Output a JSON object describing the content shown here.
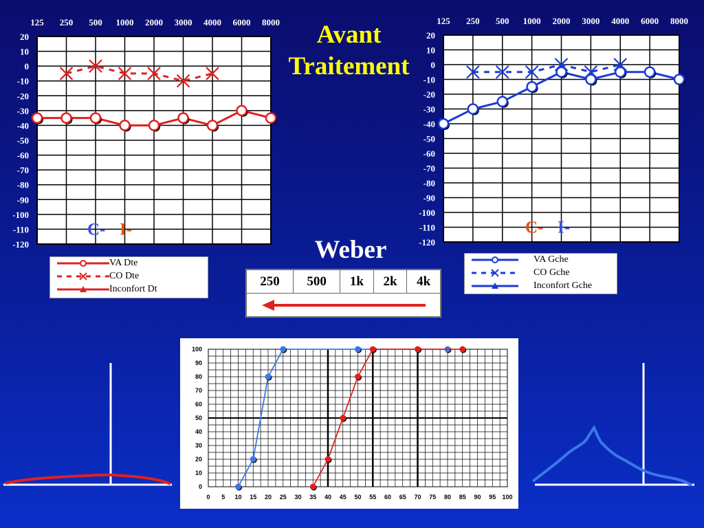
{
  "title_lines": [
    "Avant",
    "Traitement"
  ],
  "weber": {
    "title": "Weber",
    "freqs": [
      "250",
      "500",
      "1k",
      "2k",
      "4k"
    ],
    "arrow_direction": "left",
    "arrow_color": "#e02020"
  },
  "colors": {
    "right": "#e02020",
    "left": "#1a3ad8",
    "speech_left": "#3a78e6",
    "speech_right": "#e02020",
    "title": "#ffff00",
    "ci_C": "#3a4ee0",
    "ci_I": "#e85010"
  },
  "legend_right": [
    {
      "label": "VA Dte",
      "style": "solid-circle"
    },
    {
      "label": "CO Dte",
      "style": "dashed-x"
    },
    {
      "label": "Inconfort Dt",
      "style": "solid-triangle"
    }
  ],
  "legend_left": [
    {
      "label": "VA Gche",
      "style": "solid-circle"
    },
    {
      "label": "CO Gche",
      "style": "dashed-x"
    },
    {
      "label": "Inconfort Gche",
      "style": "solid-triangle"
    }
  ],
  "chart_data": [
    {
      "type": "line",
      "name": "audiogram-right",
      "x_categories": [
        "125",
        "250",
        "500",
        "1000",
        "2000",
        "3000",
        "4000",
        "6000",
        "8000"
      ],
      "yticks": [
        "20",
        "10",
        "0",
        "-10",
        "-20",
        "-30",
        "-40",
        "-50",
        "-60",
        "-70",
        "-80",
        "-90",
        "-100",
        "-110",
        "-120"
      ],
      "ylim": [
        -120,
        20
      ],
      "grid": true,
      "marks": [
        "C-",
        "I-"
      ],
      "series": [
        {
          "name": "VA Dte",
          "x_index": [
            0,
            1,
            2,
            3,
            4,
            5,
            6,
            7,
            8
          ],
          "values": [
            -35,
            -35,
            -35,
            -40,
            -40,
            -35,
            -40,
            -30,
            -35
          ],
          "style": "solid-circle"
        },
        {
          "name": "CO Dte",
          "x_index": [
            1,
            2,
            3,
            4,
            5,
            6
          ],
          "values": [
            -5,
            0,
            -5,
            -5,
            -10,
            -5
          ],
          "style": "dashed-x"
        }
      ]
    },
    {
      "type": "line",
      "name": "audiogram-left",
      "x_categories": [
        "125",
        "250",
        "500",
        "1000",
        "2000",
        "3000",
        "4000",
        "6000",
        "8000"
      ],
      "yticks": [
        "20",
        "10",
        "0",
        "-10",
        "-20",
        "-30",
        "-40",
        "-50",
        "-60",
        "-70",
        "-80",
        "-90",
        "-100",
        "-110",
        "-120"
      ],
      "ylim": [
        -120,
        20
      ],
      "grid": true,
      "marks": [
        "C-",
        "I-"
      ],
      "series": [
        {
          "name": "VA Gche",
          "x_index": [
            0,
            1,
            2,
            3,
            4,
            5,
            6,
            7,
            8
          ],
          "values": [
            -40,
            -30,
            -25,
            -15,
            -5,
            -10,
            -5,
            -5,
            -10
          ],
          "style": "solid-circle"
        },
        {
          "name": "CO Gche",
          "x_index": [
            1,
            2,
            3,
            4,
            5,
            6
          ],
          "values": [
            -5,
            -5,
            -5,
            0,
            -5,
            0
          ],
          "style": "dashed-x"
        }
      ]
    },
    {
      "type": "line",
      "name": "speech-audiometry",
      "xticks": [
        "0",
        "5",
        "10",
        "15",
        "20",
        "25",
        "30",
        "35",
        "40",
        "45",
        "50",
        "55",
        "60",
        "65",
        "70",
        "75",
        "80",
        "85",
        "90",
        "95",
        "100"
      ],
      "yticks": [
        "0",
        "10",
        "20",
        "30",
        "40",
        "50",
        "60",
        "70",
        "80",
        "90",
        "100"
      ],
      "xlim": [
        0,
        100
      ],
      "ylim": [
        0,
        100
      ],
      "grid": true,
      "series": [
        {
          "color": "speech_left",
          "x": [
            10,
            15,
            20,
            25,
            50,
            80
          ],
          "y": [
            0,
            20,
            80,
            100,
            100,
            100
          ]
        },
        {
          "color": "speech_right",
          "x": [
            35,
            40,
            45,
            50,
            55,
            70,
            85
          ],
          "y": [
            0,
            20,
            50,
            80,
            100,
            100,
            100
          ]
        }
      ]
    }
  ]
}
